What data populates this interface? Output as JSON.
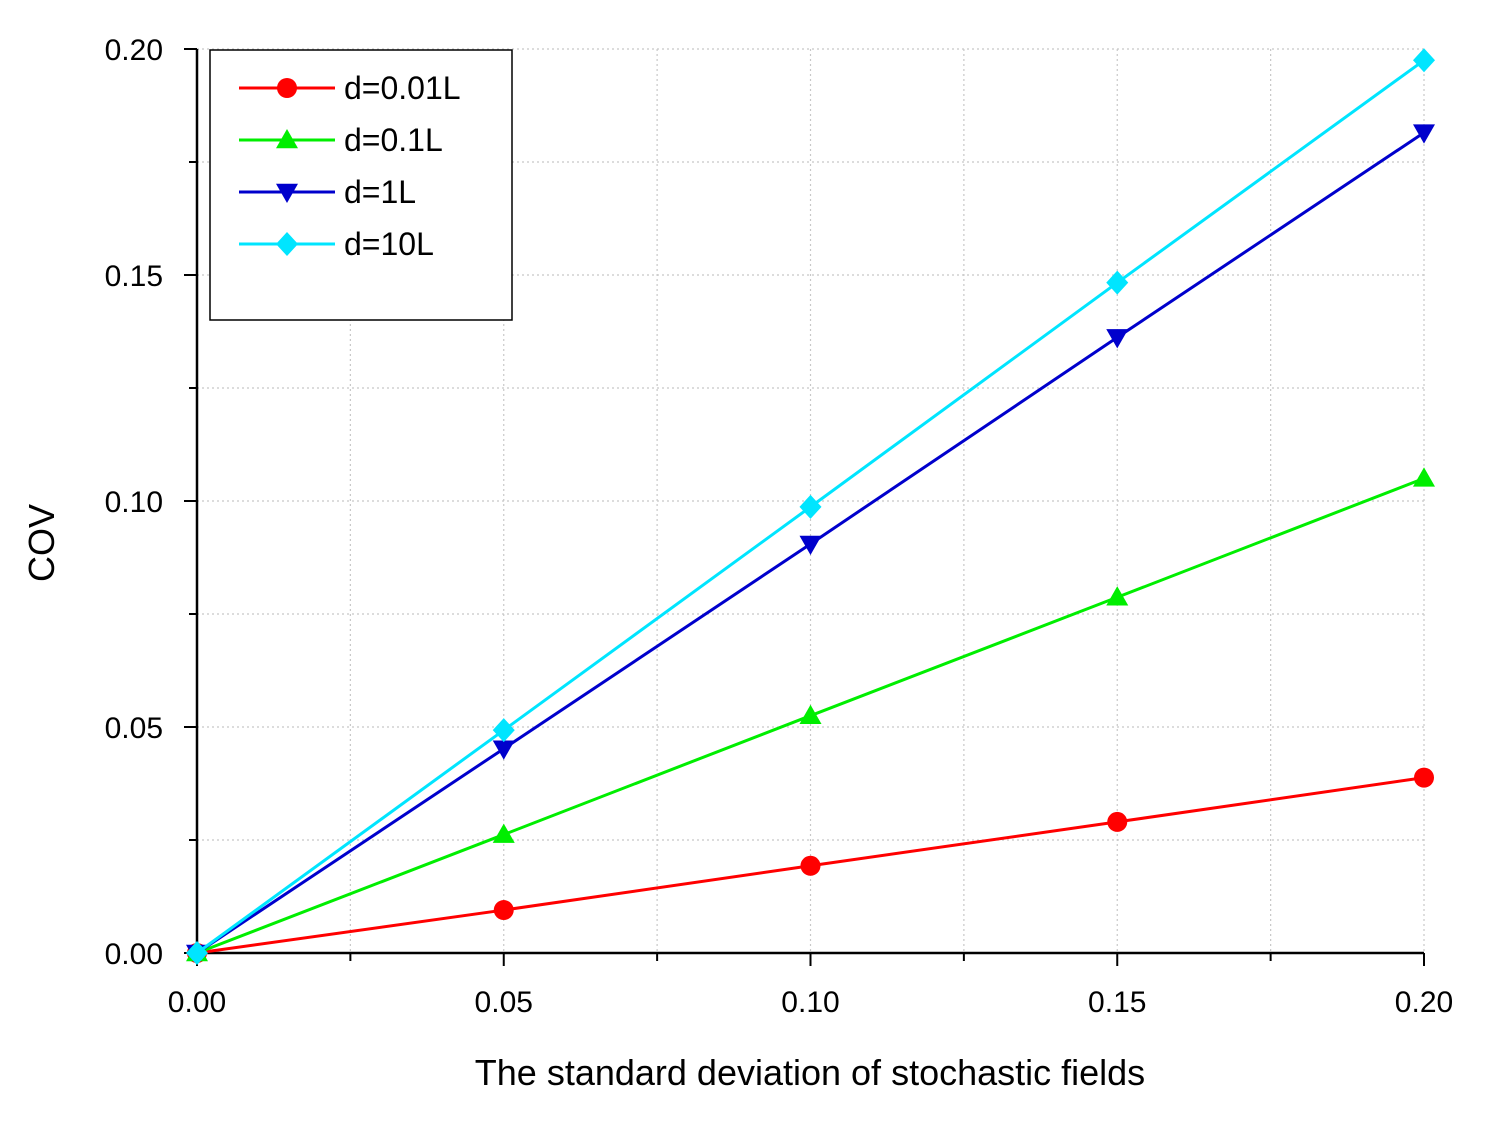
{
  "chart_data": {
    "type": "line",
    "title": "",
    "xlabel": "The standard deviation of stochastic fields",
    "ylabel": "COV",
    "xlim": [
      0,
      0.2
    ],
    "ylim": [
      0,
      0.2
    ],
    "xticks": [
      "0.00",
      "0.05",
      "0.10",
      "0.15",
      "0.20"
    ],
    "yticks": [
      "0.00",
      "0.05",
      "0.10",
      "0.15",
      "0.20"
    ],
    "grid": true,
    "legend_position": "top-left",
    "x": [
      0,
      0.05,
      0.1,
      0.15,
      0.2
    ],
    "series": [
      {
        "name": "d=0.01L",
        "marker": "circle",
        "color": "#ff0000",
        "values": [
          0,
          0.0095,
          0.0193,
          0.029,
          0.0388
        ]
      },
      {
        "name": "d=0.1L",
        "marker": "triangle-up",
        "color": "#00ee00",
        "values": [
          0,
          0.0262,
          0.0525,
          0.0787,
          0.105
        ]
      },
      {
        "name": "d=1L",
        "marker": "triangle-down",
        "color": "#0000cc",
        "values": [
          0,
          0.0452,
          0.0905,
          0.1362,
          0.1815
        ]
      },
      {
        "name": "d=10L",
        "marker": "diamond",
        "color": "#00e5ff",
        "values": [
          0,
          0.0493,
          0.0987,
          0.1483,
          0.1975
        ]
      }
    ]
  }
}
